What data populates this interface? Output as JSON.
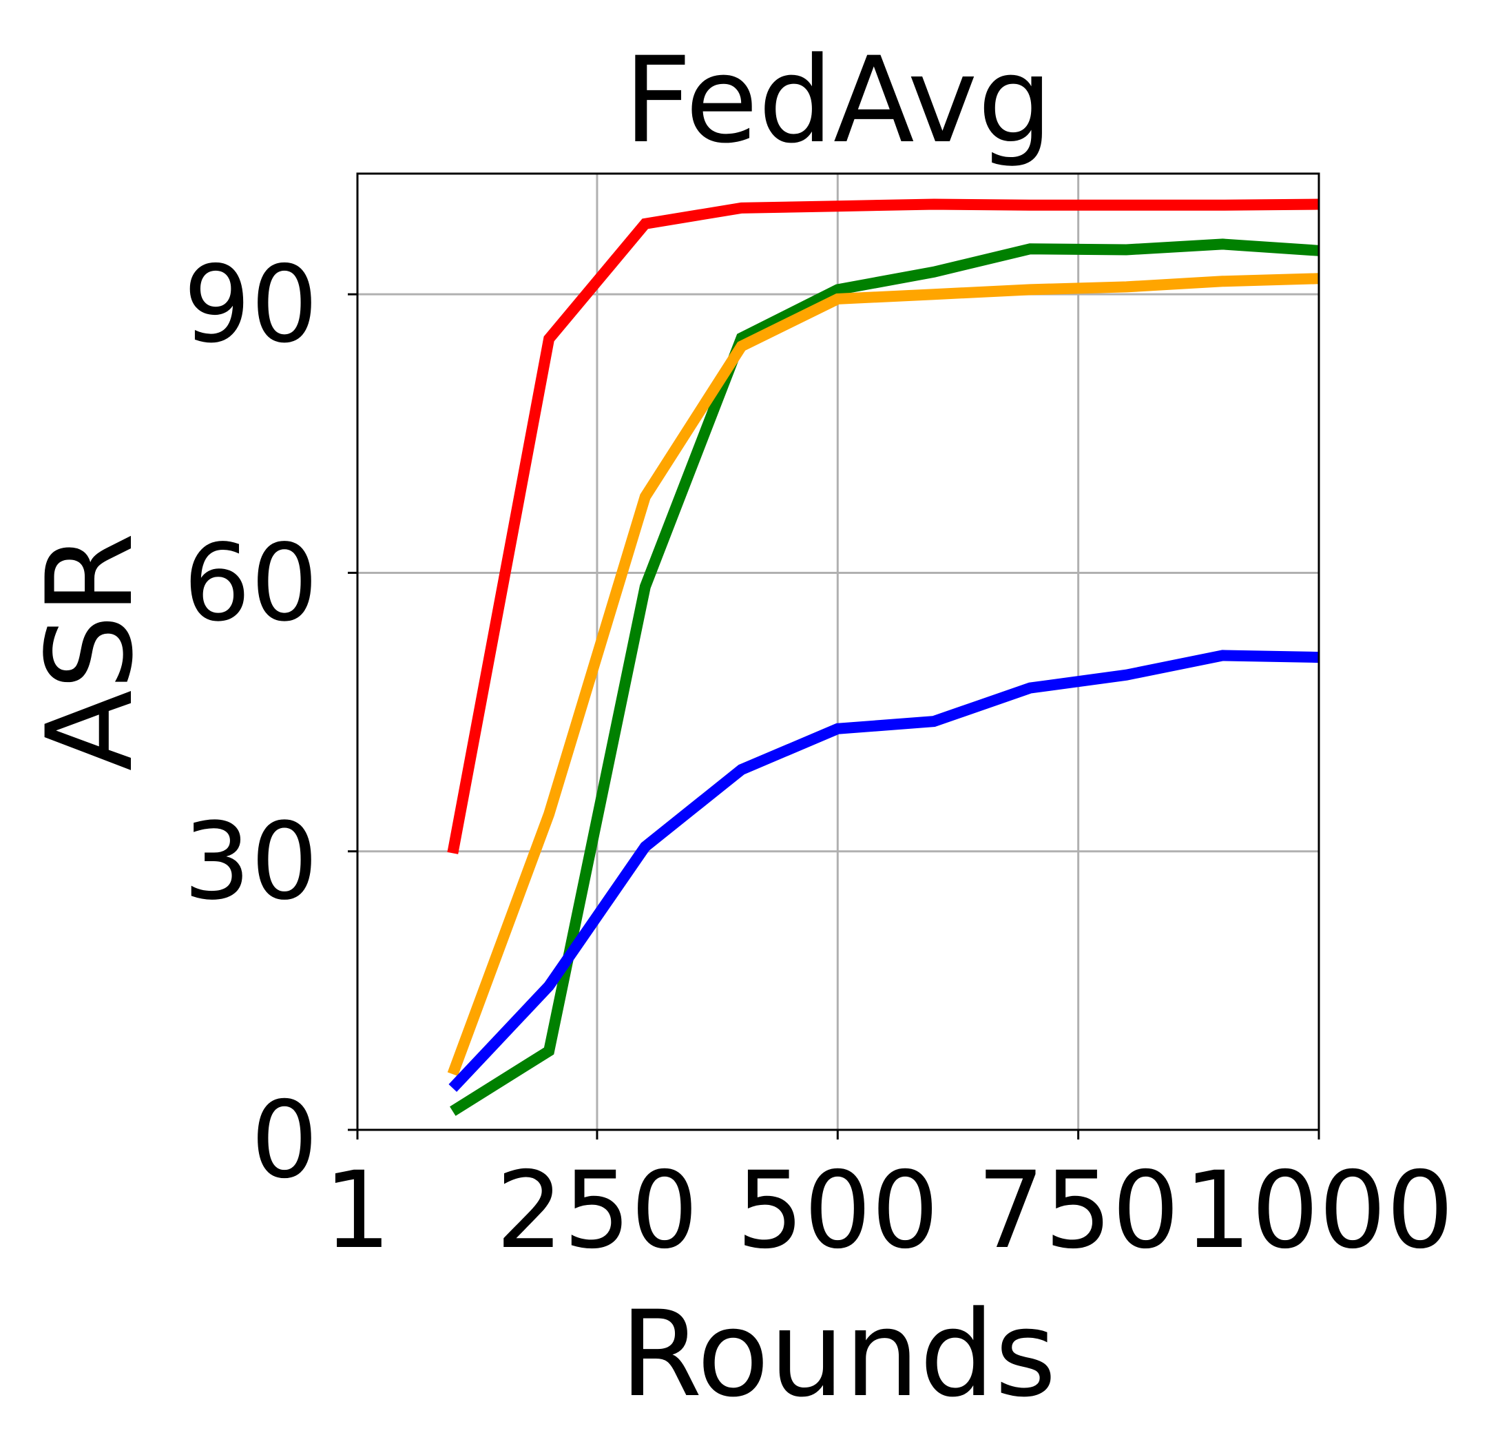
{
  "chart_data": {
    "type": "line",
    "title": "FedAvg",
    "xlabel": "Rounds",
    "ylabel": "ASR",
    "xlim": [
      1,
      1000
    ],
    "ylim": [
      0,
      103
    ],
    "x_ticks": [
      1,
      250,
      500,
      750,
      1000
    ],
    "x_tick_labels": [
      "1",
      "250",
      "500",
      "750",
      "1000"
    ],
    "y_ticks": [
      0,
      30,
      60,
      90
    ],
    "y_tick_labels": [
      "0",
      "30",
      "60",
      "90"
    ],
    "grid": true,
    "x": [
      100,
      200,
      300,
      400,
      500,
      600,
      700,
      800,
      900,
      1000
    ],
    "series": [
      {
        "color": "#ff0000",
        "values": [
          29.8,
          85.2,
          97.6,
          99.3,
          99.5,
          99.7,
          99.6,
          99.6,
          99.6,
          99.7
        ]
      },
      {
        "color": "#008000",
        "values": [
          2.0,
          8.5,
          58.5,
          85.3,
          90.5,
          92.4,
          94.9,
          94.8,
          95.4,
          94.7
        ]
      },
      {
        "color": "#ffa500",
        "values": [
          6.0,
          34.0,
          68.2,
          84.4,
          89.5,
          90.0,
          90.5,
          90.8,
          91.4,
          91.7
        ]
      },
      {
        "color": "#0000ff",
        "values": [
          4.5,
          15.5,
          30.5,
          38.8,
          43.2,
          44.0,
          47.6,
          49.0,
          51.1,
          50.9
        ]
      }
    ]
  }
}
